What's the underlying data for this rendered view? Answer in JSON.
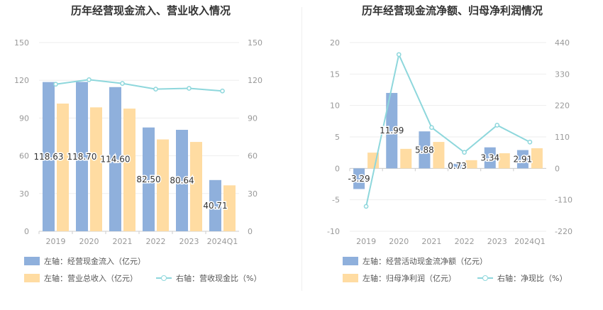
{
  "colors": {
    "bar_primary": "#8fb0dc",
    "bar_secondary": "#ffdca2",
    "line": "#8ed7dc",
    "axis_text": "#999999",
    "grid": "#eeeeee"
  },
  "chart_data": [
    {
      "type": "bar",
      "title": "历年经营现金流入、营业收入情况",
      "categories": [
        "2019",
        "2020",
        "2021",
        "2022",
        "2023",
        "2024Q1"
      ],
      "y_left": {
        "min": 0,
        "max": 150,
        "ticks": [
          0,
          30,
          60,
          90,
          120,
          150
        ]
      },
      "y_right": {
        "min": 0,
        "max": 150,
        "ticks": [
          0,
          30,
          60,
          90,
          120,
          150
        ]
      },
      "series": [
        {
          "name": "左轴：经营现金流入（亿元）",
          "kind": "bar",
          "axis": "left",
          "color": "#8fb0dc",
          "values": [
            118.63,
            118.7,
            114.6,
            82.5,
            80.64,
            40.71
          ],
          "labels": [
            "118.63",
            "118.70",
            "114.60",
            "82.50",
            "80.64",
            "40.71"
          ]
        },
        {
          "name": "左轴：营业总收入（亿元）",
          "kind": "bar",
          "axis": "left",
          "color": "#ffdca2",
          "values": [
            101.5,
            98.5,
            97.5,
            73.0,
            71.0,
            36.5
          ]
        },
        {
          "name": "右轴：营收现金比（%）",
          "kind": "line",
          "axis": "right",
          "color": "#8ed7dc",
          "values": [
            116.9,
            120.5,
            117.5,
            113.0,
            113.6,
            111.5
          ]
        }
      ]
    },
    {
      "type": "bar",
      "title": "历年经营现金流净额、归母净利润情况",
      "categories": [
        "2019",
        "2020",
        "2021",
        "2022",
        "2023",
        "2024Q1"
      ],
      "y_left": {
        "min": -10,
        "max": 20,
        "ticks": [
          -10,
          -5,
          0,
          5,
          10,
          15,
          20
        ]
      },
      "y_right": {
        "min": -220,
        "max": 440,
        "ticks": [
          -220,
          -110,
          0,
          110,
          220,
          330,
          440
        ]
      },
      "series": [
        {
          "name": "左轴：经营活动现金流净额（亿元）",
          "kind": "bar",
          "axis": "left",
          "color": "#8fb0dc",
          "values": [
            -3.29,
            11.99,
            5.88,
            0.73,
            3.34,
            2.91
          ],
          "labels": [
            "-3.29",
            "11.99",
            "5.88",
            "0.73",
            "3.34",
            "2.91"
          ]
        },
        {
          "name": "左轴：归母净利润（亿元）",
          "kind": "bar",
          "axis": "left",
          "color": "#ffdca2",
          "values": [
            2.5,
            3.1,
            4.2,
            1.3,
            2.4,
            3.2
          ]
        },
        {
          "name": "右轴：净现比（%）",
          "kind": "line",
          "axis": "right",
          "color": "#8ed7dc",
          "values": [
            -133,
            398,
            143,
            56,
            151,
            92
          ]
        }
      ]
    }
  ]
}
